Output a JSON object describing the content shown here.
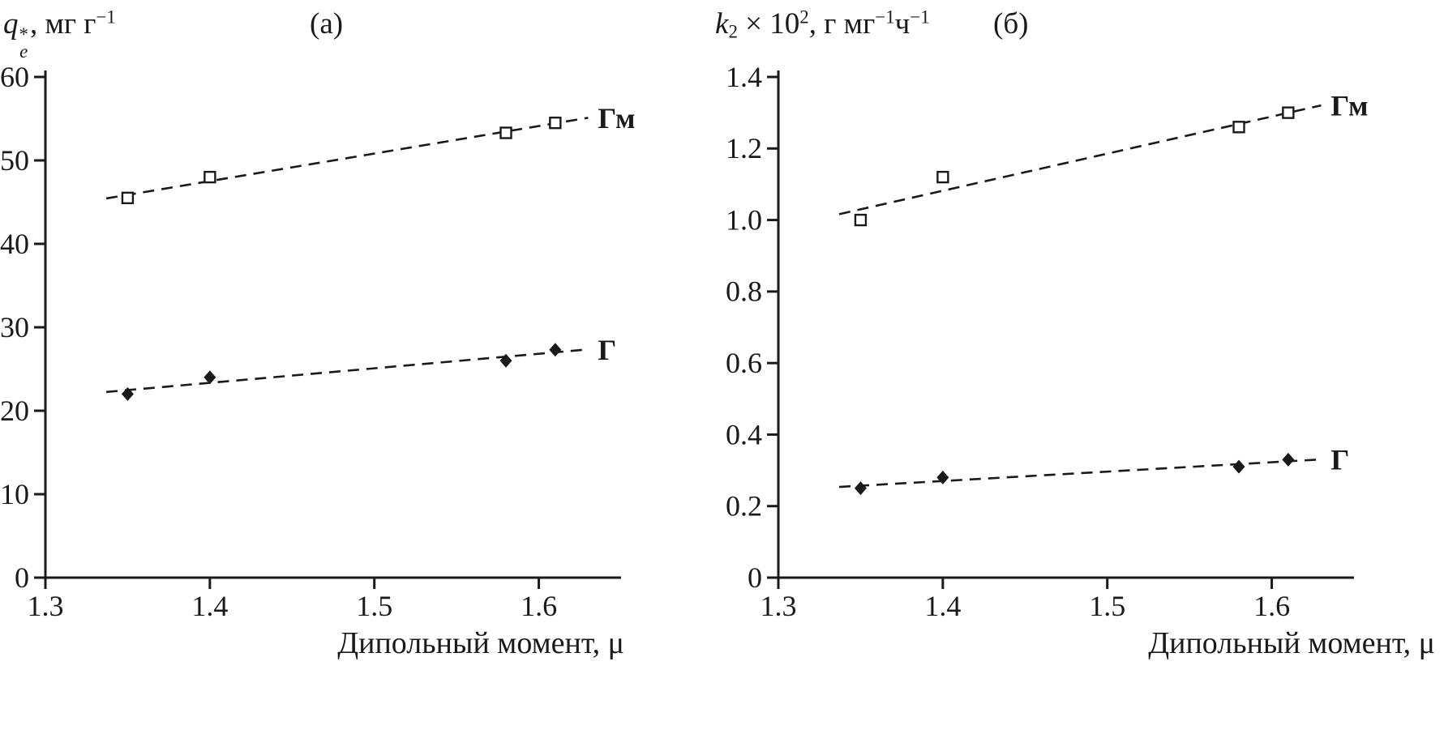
{
  "figure": {
    "ink": "#1a1a1a",
    "background": "#ffffff"
  },
  "chart_data": [
    {
      "type": "scatter",
      "panel_label": "(а)",
      "y_title_parts": [
        {
          "t": "q",
          "s": "i"
        },
        {
          "s": "stack",
          "top": "*",
          "bottom": "e"
        },
        {
          "t": ", мг г",
          "s": "n"
        },
        {
          "t": "−1",
          "s": "sup"
        }
      ],
      "x_title": "Дипольный момент, μ",
      "xlim": [
        1.3,
        1.65
      ],
      "ylim": [
        0,
        60
      ],
      "grid": false,
      "x_ticks": {
        "values": [
          1.3,
          1.4,
          1.5,
          1.6
        ],
        "labels": [
          "1.3",
          "1.4",
          "1.5",
          "1.6"
        ]
      },
      "y_ticks": {
        "values": [
          0,
          10,
          20,
          30,
          40,
          50,
          60
        ],
        "labels": [
          "0",
          "10",
          "20",
          "30",
          "40",
          "50",
          "60"
        ]
      },
      "series": [
        {
          "name": "Гм",
          "marker": "open-square",
          "line": "dashed",
          "x": [
            1.35,
            1.4,
            1.58,
            1.61
          ],
          "y": [
            45.5,
            48.0,
            53.3,
            54.5
          ]
        },
        {
          "name": "Г",
          "marker": "filled-diamond",
          "line": "dashed",
          "x": [
            1.35,
            1.4,
            1.58,
            1.61
          ],
          "y": [
            22.0,
            24.0,
            26.0,
            27.3
          ]
        }
      ],
      "legend_position": "end-of-line"
    },
    {
      "type": "scatter",
      "panel_label": "(б)",
      "y_title_parts": [
        {
          "t": "k",
          "s": "i"
        },
        {
          "t": "2",
          "s": "sub"
        },
        {
          "t": " × 10",
          "s": "n"
        },
        {
          "t": "2",
          "s": "sup"
        },
        {
          "t": ", г мг",
          "s": "n"
        },
        {
          "t": "−1",
          "s": "sup"
        },
        {
          "t": "ч",
          "s": "n"
        },
        {
          "t": "−1",
          "s": "sup"
        }
      ],
      "x_title": "Дипольный момент, μ",
      "xlim": [
        1.3,
        1.65
      ],
      "ylim": [
        0,
        1.4
      ],
      "grid": false,
      "x_ticks": {
        "values": [
          1.3,
          1.4,
          1.5,
          1.6
        ],
        "labels": [
          "1.3",
          "1.4",
          "1.5",
          "1.6"
        ]
      },
      "y_ticks": {
        "values": [
          0,
          0.2,
          0.4,
          0.6,
          0.8,
          1.0,
          1.2,
          1.4
        ],
        "labels": [
          "0",
          "0.2",
          "0.4",
          "0.6",
          "0.8",
          "1.0",
          "1.2",
          "1.4"
        ]
      },
      "series": [
        {
          "name": "Гм",
          "marker": "open-square",
          "line": "dashed",
          "x": [
            1.35,
            1.4,
            1.58,
            1.61
          ],
          "y": [
            1.0,
            1.12,
            1.26,
            1.3
          ]
        },
        {
          "name": "Г",
          "marker": "filled-diamond",
          "line": "dashed",
          "x": [
            1.35,
            1.4,
            1.58,
            1.61
          ],
          "y": [
            0.25,
            0.28,
            0.31,
            0.33
          ]
        }
      ],
      "legend_position": "end-of-line"
    }
  ]
}
